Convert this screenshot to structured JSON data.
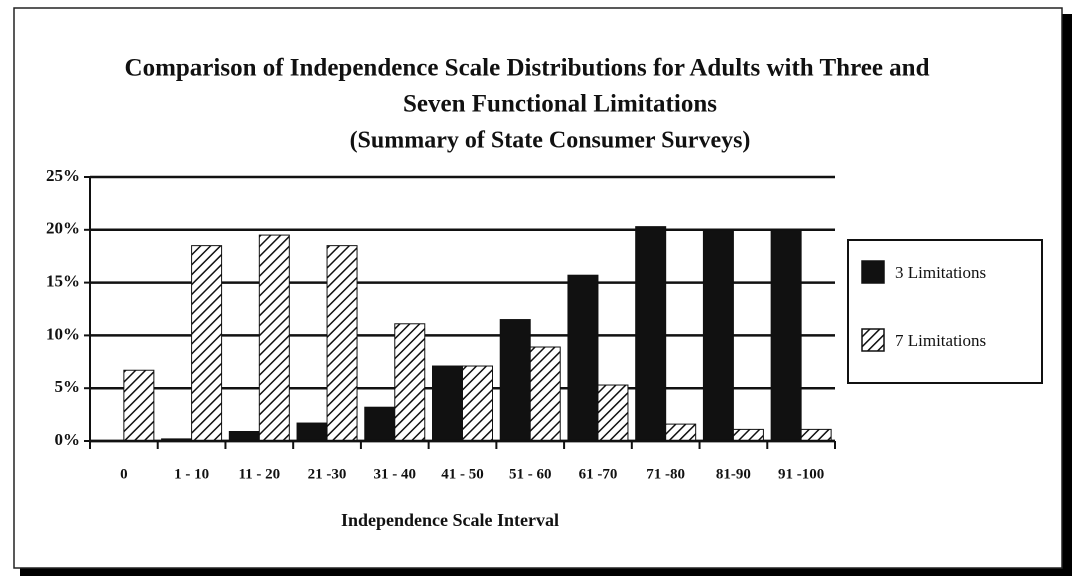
{
  "chart_data": {
    "type": "bar",
    "title": [
      "Comparison of Independence Scale Distributions for Adults with Three and",
      "Seven Functional Limitations"
    ],
    "subtitle": "(Summary of State Consumer Surveys)",
    "x_label": "Independence Scale Interval",
    "categories": [
      "0",
      "1 - 10",
      "11 - 20",
      "21 -30",
      "31 - 40",
      "41 - 50",
      "51 - 60",
      "61 -70",
      "71 -80",
      "81-90",
      "91 -100"
    ],
    "series": [
      {
        "name": "3 Limitations",
        "color": "#111111",
        "pattern": "solid",
        "values": [
          0,
          0.2,
          0.9,
          1.7,
          3.2,
          7.1,
          11.5,
          15.7,
          20.3,
          20,
          20
        ]
      },
      {
        "name": "7 Limitations",
        "color": "#111111",
        "pattern": "hatch",
        "values": [
          6.7,
          18.5,
          19.5,
          18.5,
          11.1,
          7.1,
          8.9,
          5.3,
          1.6,
          1.1,
          1.1
        ]
      }
    ],
    "ylim": [
      0,
      25
    ],
    "yticks": [
      {
        "value": 0,
        "label": "0%"
      },
      {
        "value": 5,
        "label": "5%"
      },
      {
        "value": 10,
        "label": "10%"
      },
      {
        "value": 15,
        "label": "15%"
      },
      {
        "value": 20,
        "label": "20%"
      },
      {
        "value": 25,
        "label": "25%"
      }
    ],
    "grid": true,
    "legend": "right"
  }
}
